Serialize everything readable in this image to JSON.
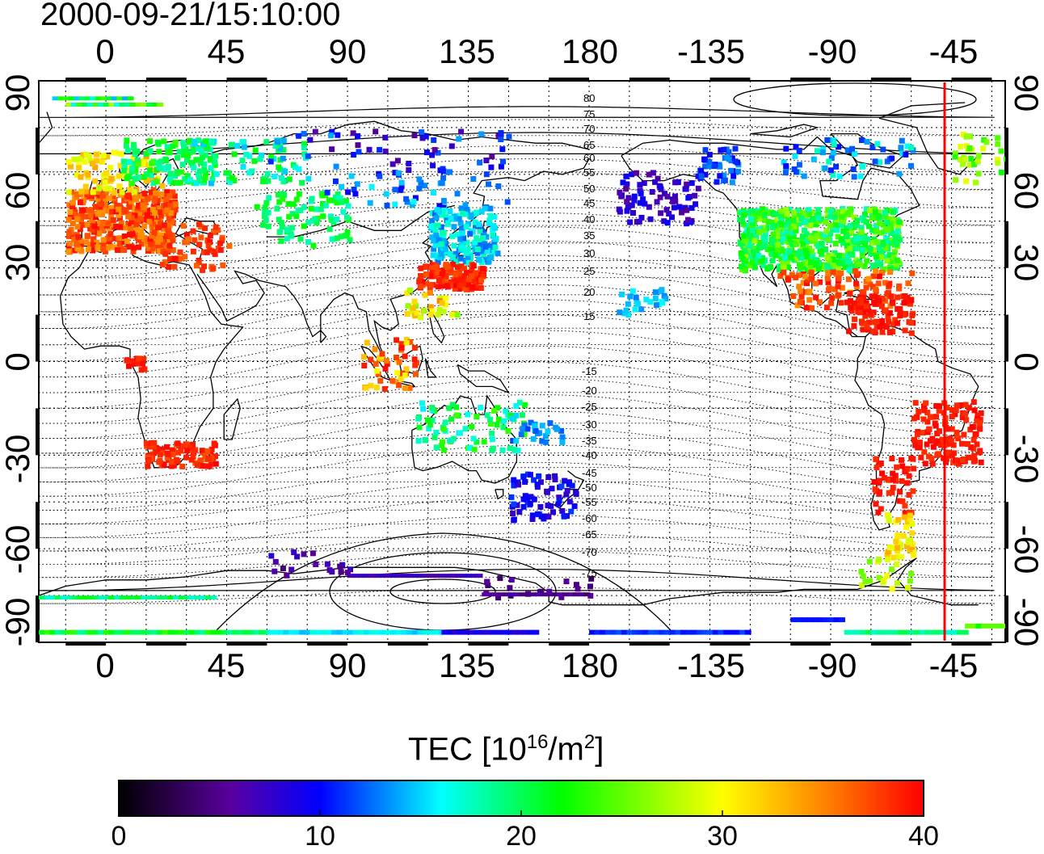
{
  "title": "2000-09-21/15:10:00",
  "map": {
    "lon_ticks": [
      "0",
      "45",
      "90",
      "135",
      "180",
      "-135",
      "-90",
      "-45"
    ],
    "lat_ticks": [
      "90",
      "60",
      "30",
      "0",
      "-30",
      "-60",
      "-90"
    ],
    "contour_labels_north": [
      "80",
      "75",
      "70",
      "65",
      "60",
      "55",
      "50",
      "45",
      "40",
      "35",
      "30",
      "25",
      "20",
      "15"
    ],
    "contour_labels_south": [
      "-15",
      "-20",
      "-25",
      "-30",
      "-35",
      "-40",
      "-45",
      "-50",
      "-55",
      "-60",
      "-65",
      "-70",
      "-75"
    ],
    "marker_longitude": "-48",
    "marker_color": "#ff0000"
  },
  "colorbar": {
    "label_main": "TEC  [10",
    "label_sup1": "16",
    "label_mid": "/m",
    "label_sup2": "2",
    "label_end": "]",
    "ticks": [
      "0",
      "10",
      "20",
      "30",
      "40"
    ],
    "colors": [
      "#000000",
      "#5a00a0",
      "#0000ff",
      "#00ffff",
      "#00ff00",
      "#ffff00",
      "#ff8000",
      "#ff0000"
    ]
  }
}
